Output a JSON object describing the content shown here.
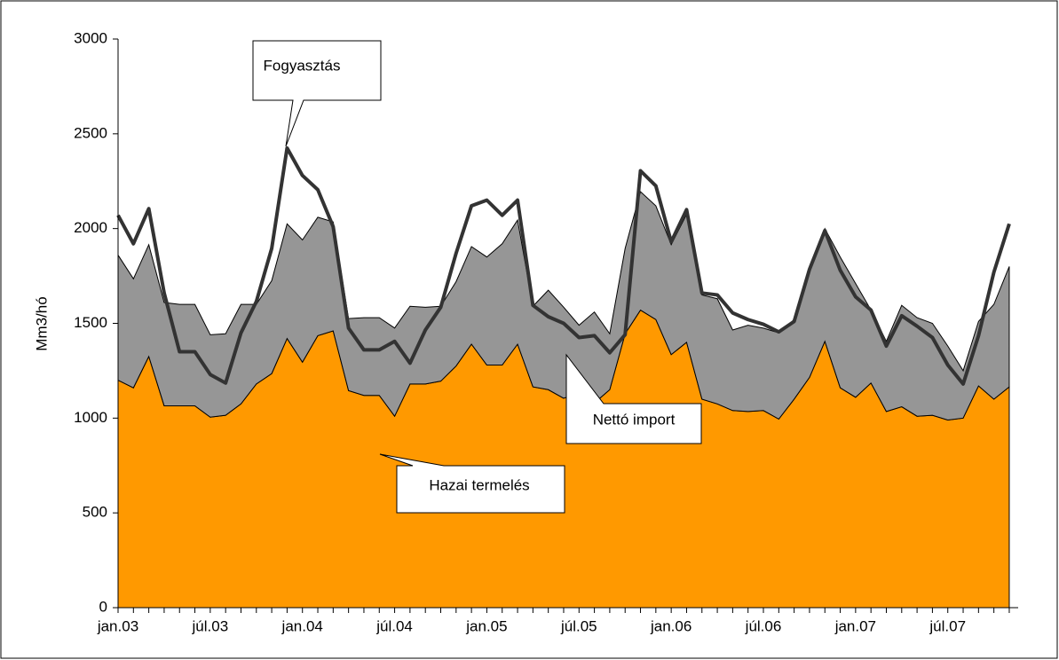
{
  "chart_data": {
    "type": "area",
    "y_label": "Mm3/hó",
    "categories": [
      "jan.03",
      null,
      null,
      null,
      null,
      null,
      "júl.03",
      null,
      null,
      null,
      null,
      null,
      "jan.04",
      null,
      null,
      null,
      null,
      null,
      "júl.04",
      null,
      null,
      null,
      null,
      null,
      "jan.05",
      null,
      null,
      null,
      null,
      null,
      "júl.05",
      null,
      null,
      null,
      null,
      null,
      "jan.06",
      null,
      null,
      null,
      null,
      null,
      "júl.06",
      null,
      null,
      null,
      null,
      null,
      "jan.07",
      null,
      null,
      null,
      null,
      null,
      "júl.07",
      null,
      null,
      null,
      null
    ],
    "ylim": [
      0,
      3000
    ],
    "yticks": [
      0,
      500,
      1000,
      1500,
      2000,
      2500,
      3000
    ],
    "grid": false,
    "series": [
      {
        "name": "Hazai termelés",
        "color": "#ff9900",
        "kind": "area",
        "values": [
          1200,
          1160,
          1325,
          1065,
          1065,
          1065,
          1005,
          1015,
          1075,
          1180,
          1235,
          1420,
          1295,
          1435,
          1460,
          1145,
          1120,
          1120,
          1010,
          1180,
          1180,
          1195,
          1275,
          1390,
          1280,
          1280,
          1390,
          1165,
          1150,
          1105,
          1130,
          1080,
          1150,
          1445,
          1570,
          1520,
          1335,
          1400,
          1100,
          1075,
          1040,
          1035,
          1040,
          995,
          1100,
          1215,
          1405,
          1160,
          1110,
          1185,
          1035,
          1060,
          1010,
          1015,
          990,
          1000,
          1170,
          1100,
          1165
        ]
      },
      {
        "name": "Nettó import",
        "color": "#969696",
        "kind": "area",
        "values": [
          660,
          575,
          590,
          545,
          535,
          535,
          435,
          430,
          525,
          420,
          490,
          605,
          645,
          625,
          575,
          380,
          410,
          410,
          465,
          410,
          405,
          395,
          445,
          515,
          570,
          640,
          655,
          425,
          525,
          480,
          360,
          480,
          295,
          450,
          625,
          600,
          580,
          675,
          550,
          555,
          425,
          455,
          435,
          455,
          420,
          565,
          595,
          690,
          600,
          385,
          370,
          535,
          520,
          485,
          390,
          250,
          340,
          500,
          635
        ]
      },
      {
        "name": "Fogyasztás",
        "color": "#333333",
        "kind": "line",
        "values": [
          2070,
          1920,
          2105,
          1660,
          1350,
          1350,
          1230,
          1185,
          1450,
          1615,
          1895,
          2425,
          2280,
          2205,
          2010,
          1475,
          1360,
          1360,
          1405,
          1290,
          1465,
          1585,
          1870,
          2120,
          2150,
          2070,
          2150,
          1595,
          1535,
          1500,
          1425,
          1435,
          1345,
          1440,
          2305,
          2225,
          1930,
          2100,
          1660,
          1650,
          1555,
          1520,
          1495,
          1455,
          1510,
          1785,
          1990,
          1780,
          1640,
          1570,
          1380,
          1540,
          1485,
          1425,
          1280,
          1180,
          1435,
          1770,
          2025
        ]
      }
    ]
  }
}
